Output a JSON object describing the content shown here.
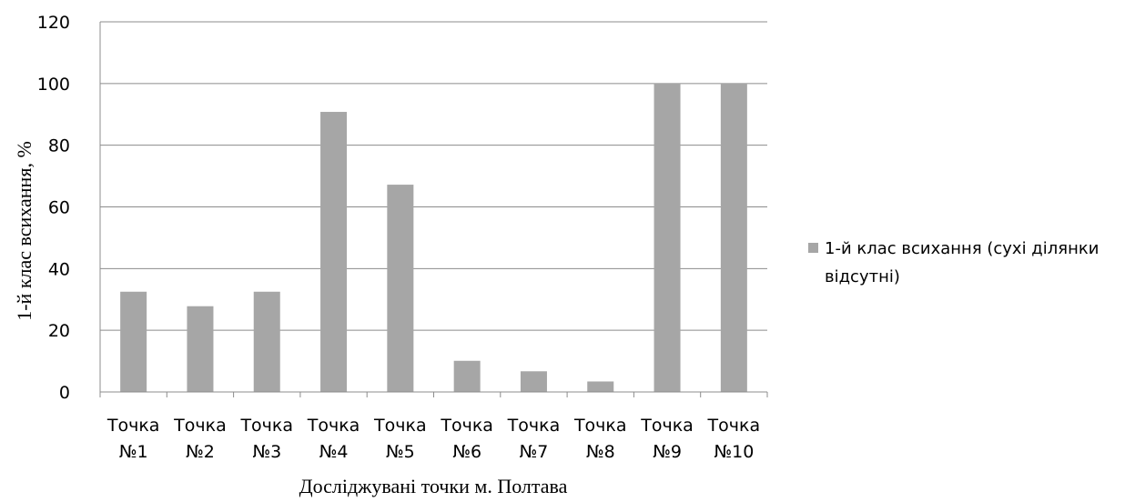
{
  "chart_data": {
    "type": "bar",
    "categories": [
      [
        "Точка",
        "№1"
      ],
      [
        "Точка",
        "№2"
      ],
      [
        "Точка",
        "№3"
      ],
      [
        "Точка",
        "№4"
      ],
      [
        "Точка",
        "№5"
      ],
      [
        "Точка",
        "№6"
      ],
      [
        "Точка",
        "№7"
      ],
      [
        "Точка",
        "№8"
      ],
      [
        "Точка",
        "№9"
      ],
      [
        "Точка",
        "№10"
      ]
    ],
    "series": [
      {
        "name_lines": [
          "1-й клас всихання (сухі ділянки",
          "відсутні)"
        ],
        "color": "#a6a6a6",
        "values": [
          32.5,
          27.8,
          32.5,
          90.8,
          67.2,
          10.1,
          6.7,
          3.4,
          100,
          100
        ]
      }
    ],
    "ylim": [
      0,
      120
    ],
    "yticks": [
      0,
      20,
      40,
      60,
      80,
      100,
      120
    ],
    "xlabel": "Досліджувані точки м. Полтава",
    "ylabel": "1-й клас всихання, %",
    "grid": true,
    "gridColor": "#8c8c8c",
    "legend_position": "right"
  }
}
